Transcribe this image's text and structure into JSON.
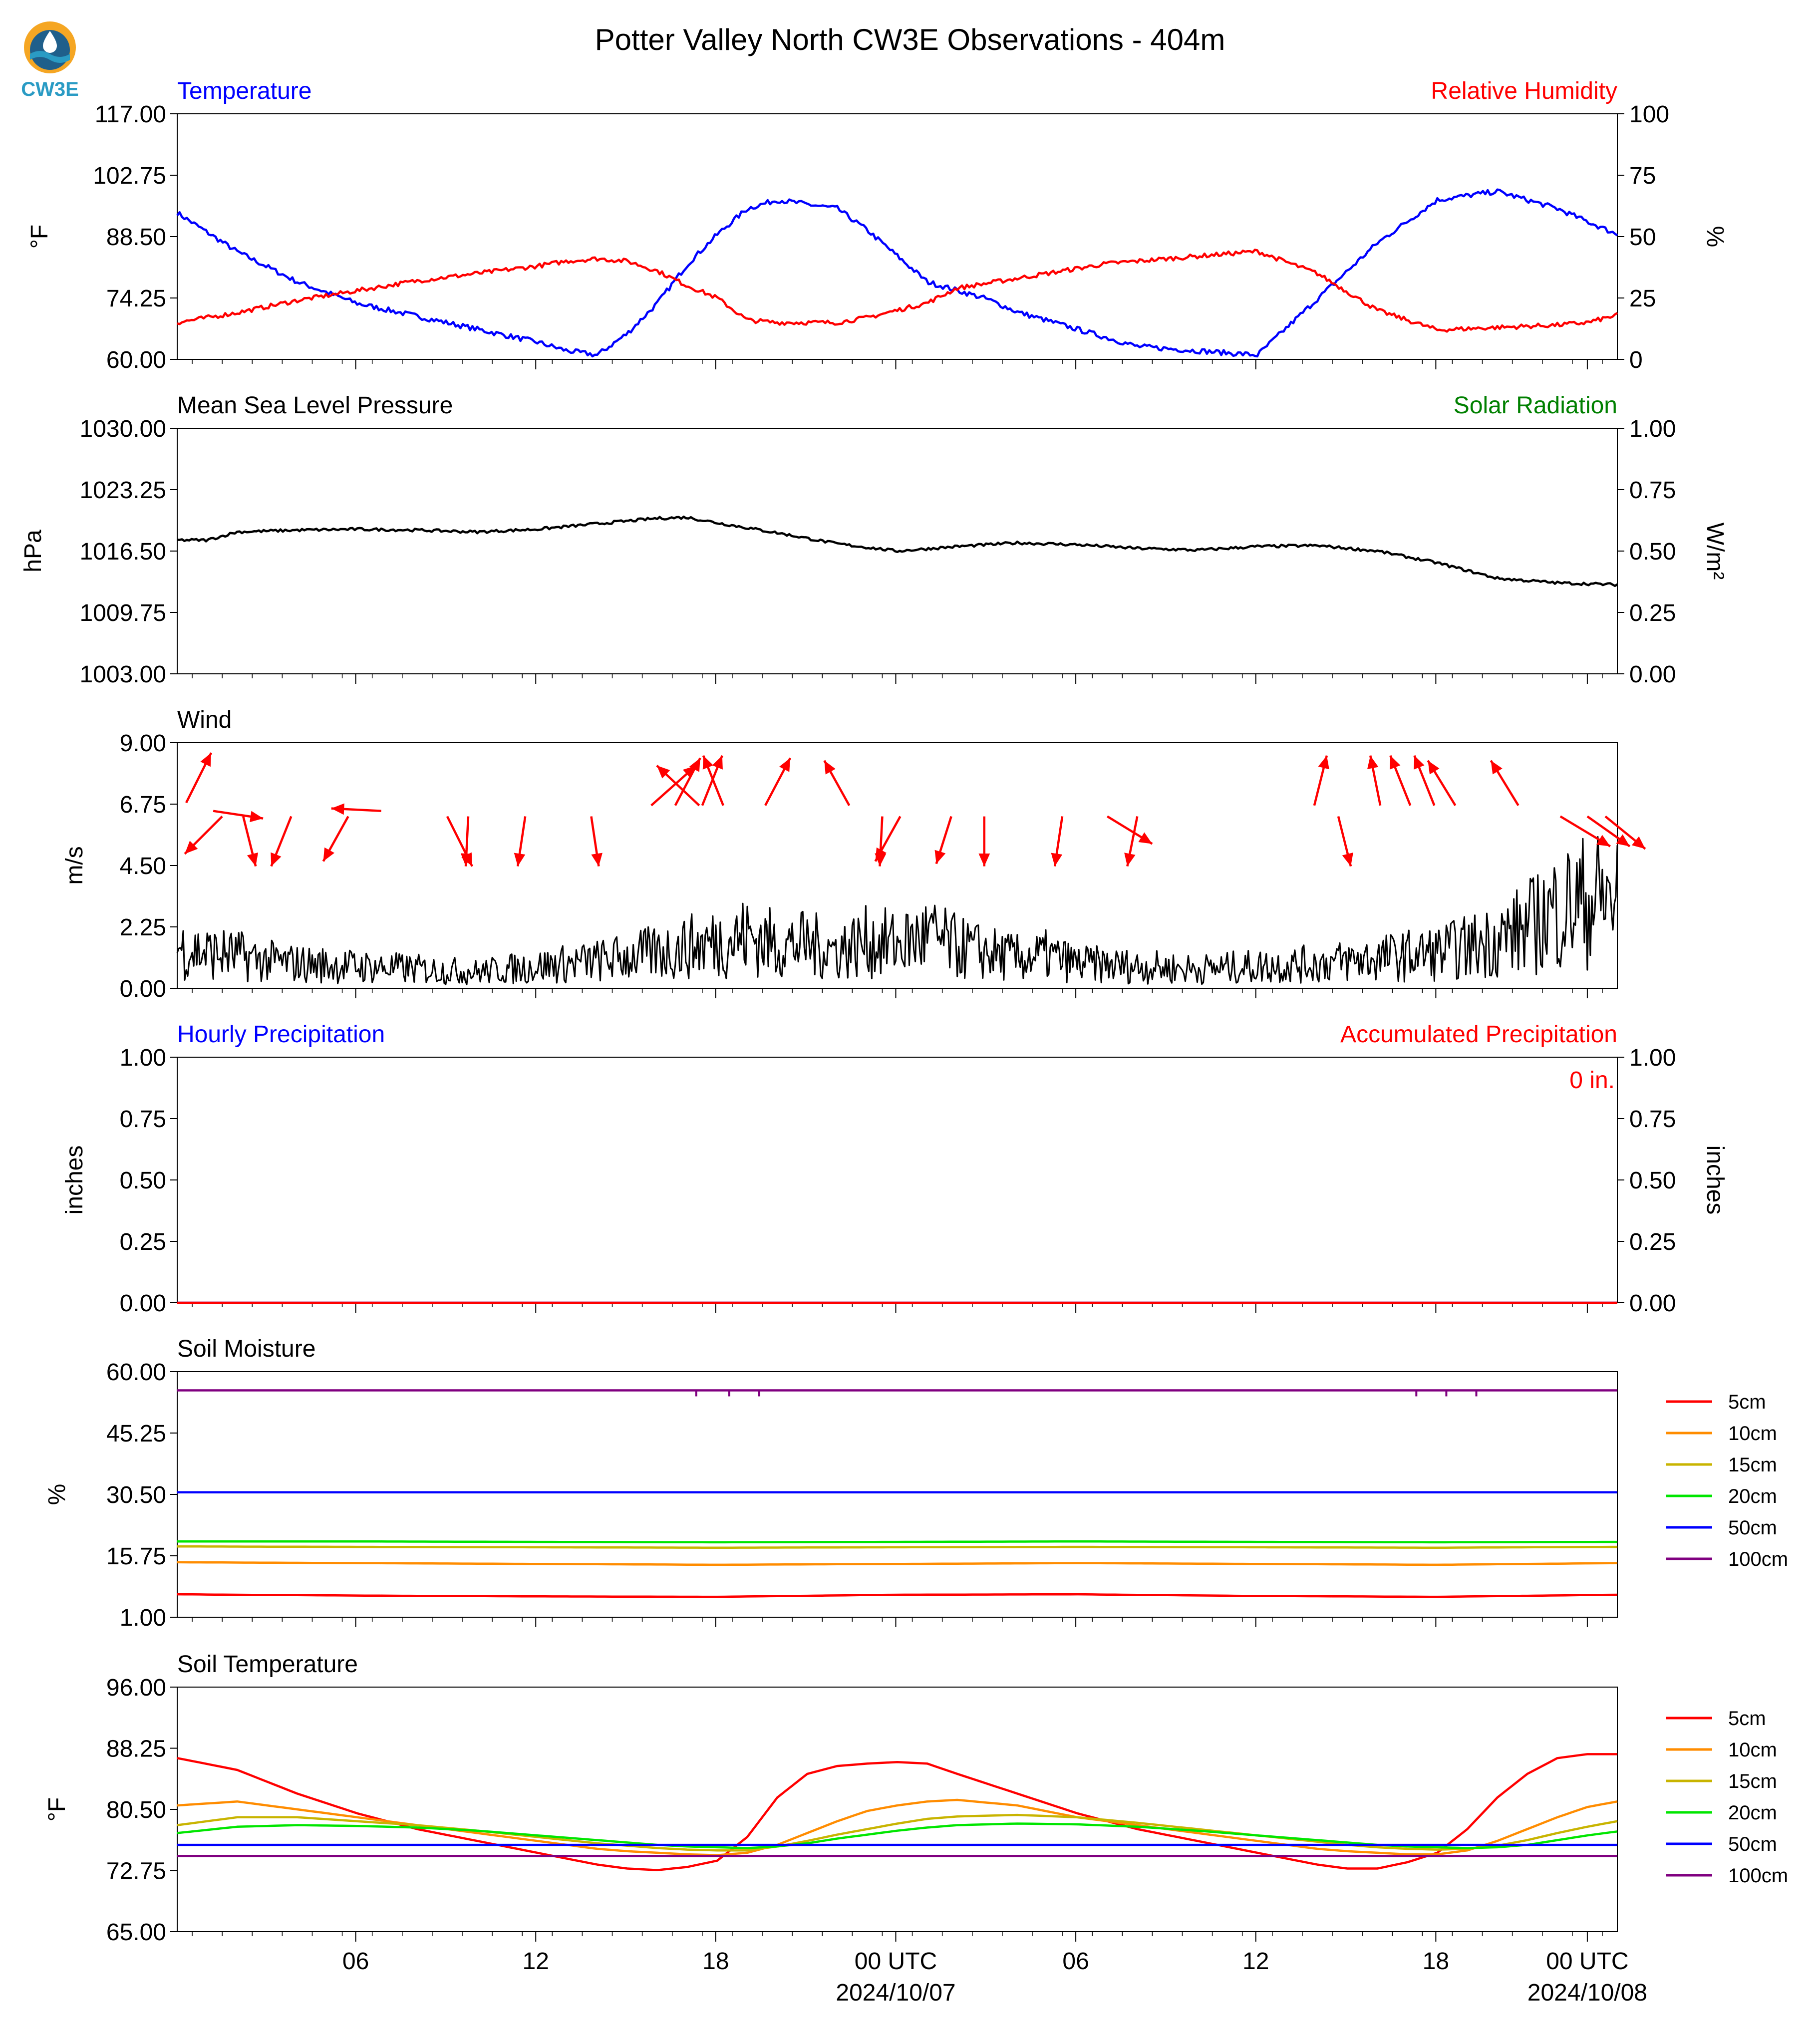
{
  "header": {
    "title": "Potter Valley North CW3E Observations - 404m",
    "logo_text": "CW3E"
  },
  "colors": {
    "blue": "#0000ff",
    "red": "#ff0000",
    "green": "#008000",
    "black": "#000000",
    "logo_orange": "#f5a623",
    "logo_teal": "#2a9bc4",
    "logo_navy": "#1f5f8b"
  },
  "x_axis": {
    "ticks": [
      "06",
      "12",
      "18",
      "00 UTC",
      "06",
      "12",
      "18",
      "00 UTC"
    ],
    "dates": [
      "2024/10/07",
      "2024/10/08"
    ]
  },
  "legend": {
    "items": [
      {
        "label": "5cm",
        "color": "#ff0000"
      },
      {
        "label": "10cm",
        "color": "#ff8c00"
      },
      {
        "label": "15cm",
        "color": "#c8b400"
      },
      {
        "label": "20cm",
        "color": "#00e600"
      },
      {
        "label": "50cm",
        "color": "#0000ff"
      },
      {
        "label": "100cm",
        "color": "#800080"
      }
    ]
  },
  "chart_data": [
    {
      "type": "line",
      "title_left": "Temperature",
      "title_right": "Relative Humidity",
      "ylabel": "°F",
      "ylabel_right": "%",
      "ylim": [
        60,
        117
      ],
      "ylim_right": [
        0,
        100
      ],
      "yticks": [
        "117.00",
        "102.75",
        "88.50",
        "74.25",
        "60.00"
      ],
      "yticks_right": [
        "100",
        "75",
        "50",
        "25",
        "0"
      ],
      "x_hours": [
        0,
        2,
        4,
        6,
        8,
        10,
        12,
        13,
        14,
        15,
        16,
        17,
        18,
        19,
        20,
        21,
        22,
        23,
        24,
        25,
        26,
        27,
        28,
        29,
        30,
        31,
        32,
        34,
        36,
        38,
        40,
        42,
        44,
        46,
        47,
        48
      ],
      "series": [
        {
          "name": "Temperature",
          "axis": "left",
          "color": "#0000ff",
          "values": [
            94,
            85,
            78,
            73,
            70,
            67,
            64,
            62,
            61,
            66,
            73,
            82,
            89,
            95,
            97,
            96,
            95,
            90,
            84,
            78,
            76,
            74,
            71,
            69,
            67,
            65,
            63,
            62,
            61,
            74,
            87,
            97,
            99,
            95,
            92,
            89
          ]
        },
        {
          "name": "Relative Humidity",
          "axis": "right",
          "color": "#ff0000",
          "values": [
            15,
            19,
            24,
            28,
            32,
            35,
            38,
            40,
            41,
            40,
            36,
            30,
            25,
            16,
            15,
            15,
            15,
            17,
            20,
            23,
            29,
            31,
            33,
            35,
            37,
            39,
            40,
            42,
            44,
            35,
            20,
            12,
            13,
            14,
            15,
            18
          ]
        }
      ]
    },
    {
      "type": "line",
      "title_left": "Mean Sea Level Pressure",
      "title_right": "Solar Radiation",
      "ylabel": "hPa",
      "ylabel_right": "W/m²",
      "ylim": [
        1003,
        1030
      ],
      "ylim_right": [
        0,
        1
      ],
      "yticks": [
        "1030.00",
        "1023.25",
        "1016.50",
        "1009.75",
        "1003.00"
      ],
      "yticks_right": [
        "1.00",
        "0.75",
        "0.50",
        "0.25",
        "0.00"
      ],
      "x_hours": [
        0,
        1,
        2,
        4,
        6,
        8,
        10,
        12,
        14,
        16,
        17,
        18,
        20,
        22,
        24,
        26,
        28,
        30,
        32,
        34,
        36,
        38,
        40,
        42,
        44,
        46,
        48
      ],
      "series": [
        {
          "name": "Mean Sea Level Pressure",
          "axis": "left",
          "color": "#000000",
          "values": [
            1017.7,
            1017.7,
            1018.6,
            1018.8,
            1018.9,
            1018.8,
            1018.6,
            1018.9,
            1019.5,
            1020.1,
            1020.2,
            1019.6,
            1018.5,
            1017.3,
            1016.5,
            1017.0,
            1017.4,
            1017.2,
            1016.8,
            1016.6,
            1017.0,
            1017.1,
            1016.5,
            1015.2,
            1013.5,
            1013.0,
            1012.8
          ]
        }
      ]
    },
    {
      "type": "line",
      "title_left": "Wind",
      "ylabel": "m/s",
      "ylim": [
        0,
        9
      ],
      "yticks": [
        "9.00",
        "6.75",
        "4.50",
        "2.25",
        "0.00"
      ],
      "x_hours": [
        0,
        1,
        2,
        3,
        4,
        6,
        8,
        10,
        12,
        14,
        16,
        18,
        19,
        20,
        21,
        22,
        23,
        24,
        25,
        26,
        27,
        28,
        29,
        30,
        32,
        34,
        36,
        38,
        40,
        42,
        43,
        44,
        45,
        46,
        47,
        48
      ],
      "series": [
        {
          "name": "Wind speed",
          "axis": "left",
          "color": "#000000",
          "values": [
            1.5,
            1.3,
            1.2,
            1.0,
            0.9,
            0.8,
            0.7,
            0.6,
            0.8,
            1.0,
            1.3,
            1.7,
            1.9,
            1.6,
            1.6,
            1.4,
            1.7,
            1.6,
            1.9,
            1.5,
            1.3,
            1.1,
            1.2,
            0.9,
            0.8,
            0.7,
            0.8,
            0.9,
            1.1,
            1.3,
            1.5,
            1.8,
            2.2,
            2.9,
            3.2,
            3.3
          ]
        }
      ],
      "vectors": {
        "color": "#ff0000",
        "points": [
          {
            "hour": 0.3,
            "speed": 6.8,
            "u": 1.0,
            "v": 2.0
          },
          {
            "hour": 1.5,
            "speed": 6.3,
            "u": -1.5,
            "v": -1.5
          },
          {
            "hour": 2.2,
            "speed": 6.3,
            "u": 0.5,
            "v": -2.0
          },
          {
            "hour": 1.2,
            "speed": 6.5,
            "u": 2.0,
            "v": -0.3
          },
          {
            "hour": 3.8,
            "speed": 6.3,
            "u": -0.8,
            "v": -2.0
          },
          {
            "hour": 6.8,
            "speed": 6.5,
            "u": -2.0,
            "v": 0.1
          },
          {
            "hour": 5.7,
            "speed": 6.3,
            "u": -1.0,
            "v": -1.8
          },
          {
            "hour": 9.0,
            "speed": 6.3,
            "u": 1.0,
            "v": -2.0
          },
          {
            "hour": 9.7,
            "speed": 6.3,
            "u": -0.1,
            "v": -2.0
          },
          {
            "hour": 11.6,
            "speed": 6.3,
            "u": -0.3,
            "v": -2.0
          },
          {
            "hour": 13.8,
            "speed": 6.3,
            "u": 0.3,
            "v": -2.0
          },
          {
            "hour": 15.8,
            "speed": 6.7,
            "u": 1.8,
            "v": 1.6
          },
          {
            "hour": 16.6,
            "speed": 6.7,
            "u": 1.0,
            "v": 1.9
          },
          {
            "hour": 17.5,
            "speed": 6.7,
            "u": 0.8,
            "v": 2.0
          },
          {
            "hour": 17.4,
            "speed": 6.7,
            "u": -1.7,
            "v": 1.6
          },
          {
            "hour": 18.2,
            "speed": 6.7,
            "u": -0.8,
            "v": 2.0
          },
          {
            "hour": 19.6,
            "speed": 6.7,
            "u": 1.0,
            "v": 1.9
          },
          {
            "hour": 22.4,
            "speed": 6.7,
            "u": -1.0,
            "v": 1.8
          },
          {
            "hour": 23.5,
            "speed": 6.3,
            "u": -0.1,
            "v": -2.0
          },
          {
            "hour": 24.1,
            "speed": 6.3,
            "u": -1.0,
            "v": -1.8
          },
          {
            "hour": 25.8,
            "speed": 6.3,
            "u": -0.6,
            "v": -1.9
          },
          {
            "hour": 26.9,
            "speed": 6.3,
            "u": 0.0,
            "v": -2.0
          },
          {
            "hour": 29.5,
            "speed": 6.3,
            "u": -0.3,
            "v": -2.0
          },
          {
            "hour": 31.0,
            "speed": 6.3,
            "u": 1.8,
            "v": -1.1
          },
          {
            "hour": 32.0,
            "speed": 6.3,
            "u": -0.4,
            "v": -2.0
          },
          {
            "hour": 37.9,
            "speed": 6.7,
            "u": 0.5,
            "v": 2.0
          },
          {
            "hour": 38.7,
            "speed": 6.3,
            "u": 0.5,
            "v": -2.0
          },
          {
            "hour": 40.1,
            "speed": 6.7,
            "u": -0.4,
            "v": 2.0
          },
          {
            "hour": 41.1,
            "speed": 6.7,
            "u": -0.8,
            "v": 2.0
          },
          {
            "hour": 41.9,
            "speed": 6.7,
            "u": -0.8,
            "v": 2.0
          },
          {
            "hour": 42.6,
            "speed": 6.7,
            "u": -1.1,
            "v": 1.8
          },
          {
            "hour": 44.7,
            "speed": 6.7,
            "u": -1.1,
            "v": 1.8
          },
          {
            "hour": 46.1,
            "speed": 6.3,
            "u": 2.0,
            "v": -1.2
          },
          {
            "hour": 47.0,
            "speed": 6.3,
            "u": 1.7,
            "v": -1.2
          },
          {
            "hour": 47.6,
            "speed": 6.3,
            "u": 1.6,
            "v": -1.3
          }
        ]
      }
    },
    {
      "type": "line",
      "title_left": "Hourly Precipitation",
      "title_right": "Accumulated Precipitation",
      "annotation": "0 in.",
      "ylabel": "inches",
      "ylabel_right": "inches",
      "ylim": [
        0,
        1
      ],
      "ylim_right": [
        0,
        1
      ],
      "yticks": [
        "1.00",
        "0.75",
        "0.50",
        "0.25",
        "0.00"
      ],
      "yticks_right": [
        "1.00",
        "0.75",
        "0.50",
        "0.25",
        "0.00"
      ],
      "x_hours": [
        0,
        48
      ],
      "series": [
        {
          "name": "Hourly Precipitation",
          "axis": "left",
          "color": "#0000ff",
          "values": [
            0,
            0
          ]
        },
        {
          "name": "Accumulated Precipitation",
          "axis": "right",
          "color": "#ff0000",
          "values": [
            0,
            0
          ]
        }
      ]
    },
    {
      "type": "line",
      "title_left": "Soil Moisture",
      "ylabel": "%",
      "ylim": [
        1,
        60
      ],
      "yticks": [
        "60.00",
        "45.25",
        "30.50",
        "15.75",
        "1.00"
      ],
      "x_hours": [
        0,
        6,
        12,
        18,
        24,
        30,
        36,
        42,
        48
      ],
      "series": [
        {
          "name": "5cm",
          "color": "#ff0000",
          "values": [
            6.5,
            6.2,
            6.0,
            5.9,
            6.4,
            6.5,
            6.1,
            5.9,
            6.4
          ]
        },
        {
          "name": "10cm",
          "color": "#ff8c00",
          "values": [
            14.2,
            14.0,
            13.8,
            13.6,
            13.8,
            14.0,
            13.8,
            13.6,
            14.0
          ]
        },
        {
          "name": "15cm",
          "color": "#c8b400",
          "values": [
            18.0,
            17.9,
            17.8,
            17.7,
            17.8,
            17.9,
            17.8,
            17.7,
            17.9
          ]
        },
        {
          "name": "20cm",
          "color": "#00e600",
          "values": [
            19.2,
            19.2,
            19.1,
            19.0,
            19.1,
            19.2,
            19.1,
            19.0,
            19.1
          ]
        },
        {
          "name": "50cm",
          "color": "#0000ff",
          "values": [
            31.0,
            31.0,
            31.0,
            31.0,
            31.0,
            31.0,
            31.0,
            31.0,
            31.0
          ]
        },
        {
          "name": "100cm",
          "color": "#800080",
          "values": [
            55.5,
            55.5,
            55.5,
            55.5,
            55.5,
            55.5,
            55.5,
            55.5,
            55.5
          ]
        }
      ]
    },
    {
      "type": "line",
      "title_left": "Soil Temperature",
      "ylabel": "°F",
      "ylim": [
        65,
        96
      ],
      "yticks": [
        "96.00",
        "88.25",
        "80.50",
        "72.75",
        "65.00"
      ],
      "x_hours": [
        0,
        2,
        4,
        6,
        8,
        10,
        12,
        14,
        15,
        16,
        17,
        18,
        19,
        20,
        21,
        22,
        23,
        24,
        25,
        26,
        28,
        30,
        32,
        34,
        36,
        38,
        39,
        40,
        41,
        42,
        43,
        44,
        45,
        46,
        47,
        48
      ],
      "series": [
        {
          "name": "5cm",
          "color": "#ff0000",
          "values": [
            87.0,
            85.5,
            82.5,
            80.0,
            78.0,
            76.5,
            75.0,
            73.5,
            73.0,
            72.8,
            73.2,
            74.0,
            77.0,
            82.0,
            85.0,
            86.0,
            86.3,
            86.5,
            86.3,
            85.0,
            82.5,
            80.0,
            78.0,
            76.5,
            75.0,
            73.5,
            73.0,
            73.0,
            73.8,
            75.0,
            78.0,
            82.0,
            85.0,
            87.0,
            87.5,
            87.5
          ]
        },
        {
          "name": "10cm",
          "color": "#ff8c00",
          "values": [
            81.0,
            81.5,
            80.5,
            79.5,
            78.5,
            77.5,
            76.5,
            75.5,
            75.2,
            75.0,
            74.8,
            74.7,
            75.0,
            76.0,
            77.5,
            79.0,
            80.3,
            81.0,
            81.5,
            81.7,
            81.0,
            79.5,
            78.5,
            77.5,
            76.5,
            75.5,
            75.2,
            75.0,
            74.8,
            74.8,
            75.3,
            76.5,
            78.0,
            79.5,
            80.8,
            81.5
          ]
        },
        {
          "name": "15cm",
          "color": "#c8b400",
          "values": [
            78.5,
            79.5,
            79.5,
            79.0,
            78.5,
            77.8,
            77.0,
            76.2,
            75.9,
            75.6,
            75.4,
            75.3,
            75.3,
            75.8,
            76.5,
            77.3,
            78.0,
            78.7,
            79.3,
            79.6,
            79.8,
            79.5,
            78.8,
            78.0,
            77.2,
            76.4,
            76.0,
            75.7,
            75.5,
            75.4,
            75.5,
            75.9,
            76.6,
            77.5,
            78.3,
            79.0
          ]
        },
        {
          "name": "20cm",
          "color": "#00e600",
          "values": [
            77.5,
            78.3,
            78.5,
            78.4,
            78.2,
            77.8,
            77.2,
            76.6,
            76.3,
            76.0,
            75.8,
            75.7,
            75.6,
            75.8,
            76.2,
            76.8,
            77.3,
            77.8,
            78.2,
            78.5,
            78.7,
            78.6,
            78.3,
            77.8,
            77.2,
            76.6,
            76.3,
            76.0,
            75.8,
            75.7,
            75.6,
            75.7,
            76.0,
            76.6,
            77.2,
            77.7
          ]
        },
        {
          "name": "50cm",
          "color": "#0000ff",
          "values": [
            76.0,
            76.0,
            76.0,
            76.0,
            76.0,
            76.0,
            76.0,
            76.0,
            76.0,
            76.0,
            76.0,
            76.0,
            76.0,
            76.0,
            76.0,
            76.0,
            76.0,
            76.0,
            76.0,
            76.0,
            76.0,
            76.0,
            76.0,
            76.0,
            76.0,
            76.0,
            76.0,
            76.0,
            76.0,
            76.0,
            76.0,
            76.0,
            76.0,
            76.0,
            76.0,
            76.0
          ]
        },
        {
          "name": "100cm",
          "color": "#800080",
          "values": [
            74.6,
            74.6,
            74.6,
            74.6,
            74.6,
            74.6,
            74.6,
            74.6,
            74.6,
            74.6,
            74.6,
            74.6,
            74.6,
            74.6,
            74.6,
            74.6,
            74.6,
            74.6,
            74.6,
            74.6,
            74.6,
            74.6,
            74.6,
            74.6,
            74.6,
            74.6,
            74.6,
            74.6,
            74.6,
            74.6,
            74.6,
            74.6,
            74.6,
            74.6,
            74.6,
            74.6
          ]
        }
      ]
    }
  ]
}
